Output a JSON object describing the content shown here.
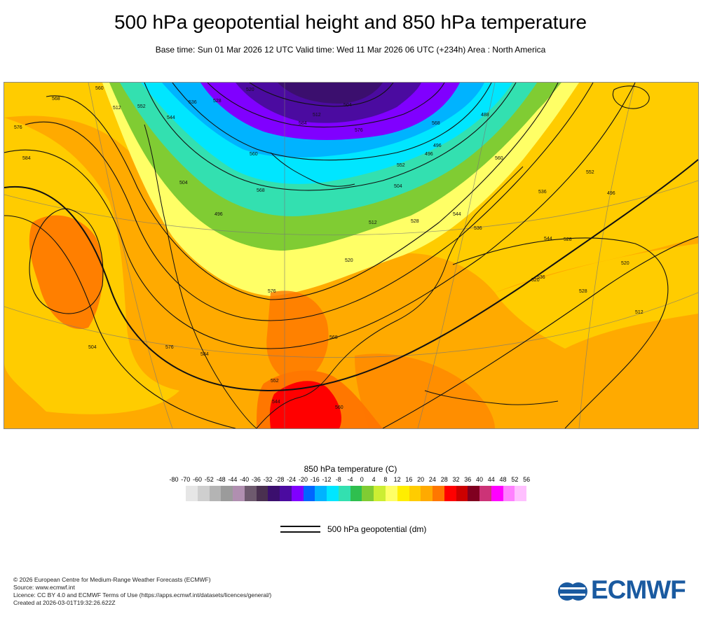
{
  "header": {
    "title": "500 hPa geopotential height and 850 hPa temperature",
    "subtitle": "Base time: Sun 01 Mar 2026 12 UTC Valid time: Wed 11 Mar 2026 06 UTC (+234h) Area : North America"
  },
  "legend": {
    "title": "850 hPa temperature (C)",
    "ticks": [
      "-80",
      "-70",
      "-60",
      "-52",
      "-48",
      "-44",
      "-40",
      "-36",
      "-32",
      "-28",
      "-24",
      "-20",
      "-16",
      "-12",
      "-8",
      "-4",
      "0",
      "4",
      "8",
      "12",
      "16",
      "20",
      "24",
      "28",
      "32",
      "36",
      "40",
      "44",
      "48",
      "52",
      "56"
    ],
    "colors": [
      "#e6e6e6",
      "#cfcfcf",
      "#b4b4b4",
      "#9b9b9b",
      "#b08fb0",
      "#6e5a6e",
      "#4a3050",
      "#3b0f6e",
      "#4b0ba0",
      "#8000ff",
      "#0066ff",
      "#00b3ff",
      "#00e6ff",
      "#33e0b0",
      "#2fbf4f",
      "#80cc33",
      "#ccee33",
      "#ffff66",
      "#ffee00",
      "#ffcc00",
      "#ffaa00",
      "#ff7700",
      "#ff0000",
      "#cc0000",
      "#800020",
      "#cc3377",
      "#ff00ff",
      "#ff80ff",
      "#ffc0ff",
      "#e8c8e8",
      "#e6e6e6"
    ]
  },
  "contour_key": {
    "label": "500 hPa geopotential (dm)"
  },
  "map": {
    "contour_labels": [
      "568",
      "576",
      "584",
      "560",
      "552",
      "544",
      "536",
      "528",
      "520",
      "512",
      "504",
      "496",
      "488",
      "496",
      "504",
      "512",
      "520",
      "528",
      "536",
      "544",
      "552",
      "560",
      "568",
      "576",
      "584",
      "576",
      "568",
      "560",
      "552",
      "544",
      "536",
      "528",
      "520",
      "512",
      "504",
      "496",
      "584",
      "576",
      "568",
      "560",
      "552",
      "544",
      "536",
      "528",
      "520",
      "512",
      "504",
      "496"
    ]
  },
  "footer": {
    "line1": "© 2026 European Centre for Medium-Range Weather Forecasts (ECMWF)",
    "line2": "Source: www.ecmwf.int",
    "line3": "Licence: CC BY 4.0 and ECMWF Terms of Use (https://apps.ecmwf.int/datasets/licences/general/)",
    "line4": "Created at 2026-03-01T19:32:26.622Z"
  },
  "logo": {
    "text": "ECMWF",
    "color": "#1a5aa0"
  }
}
